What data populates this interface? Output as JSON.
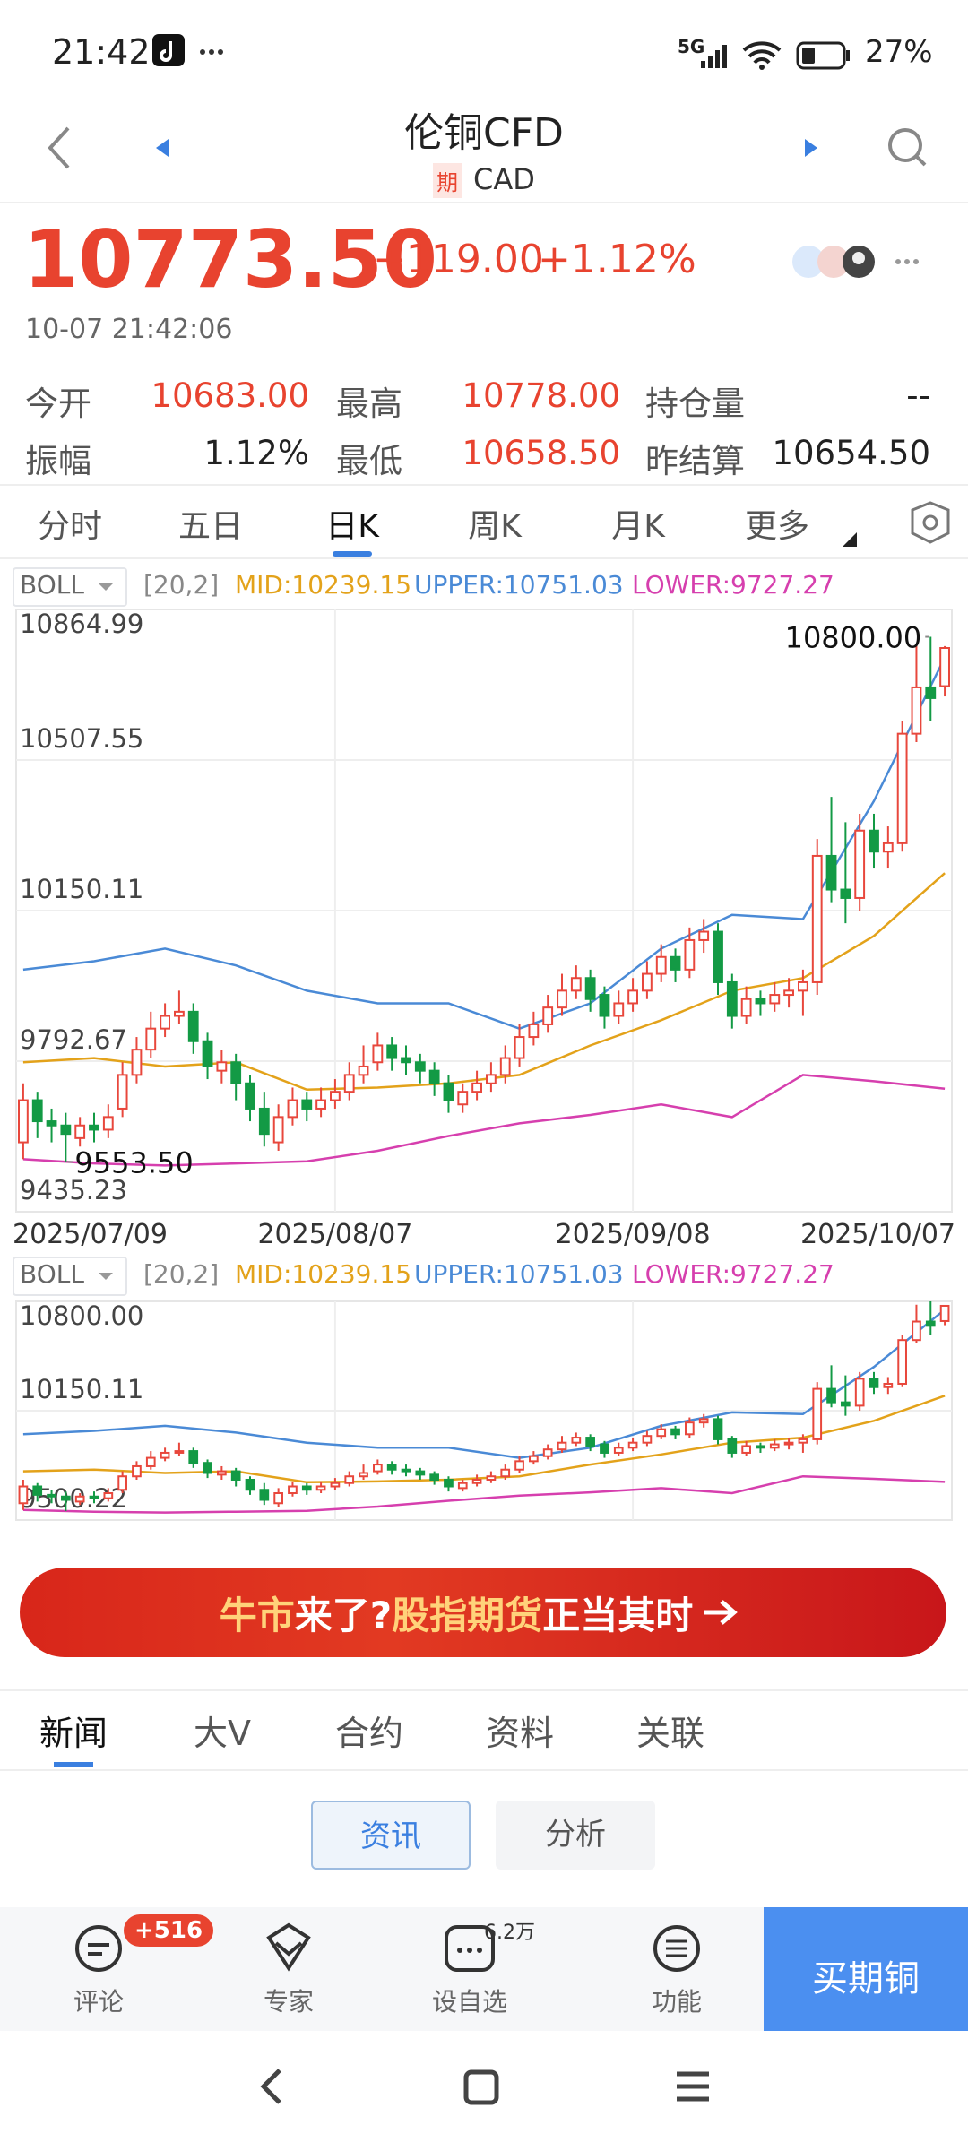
{
  "status_bar": {
    "time": "21:42",
    "network": "5G",
    "battery": "27%"
  },
  "header": {
    "title": "伦铜CFD",
    "badge": "期",
    "subtitle": "CAD"
  },
  "quote": {
    "price": "10773.50",
    "change": "+119.00",
    "change_pct": "+1.12%",
    "timestamp": "10-07 21:42:06"
  },
  "stats": [
    {
      "label": "今开",
      "value": "10683.00",
      "color": "#e8432f"
    },
    {
      "label": "最高",
      "value": "10778.00",
      "color": "#e8432f"
    },
    {
      "label": "持仓量",
      "value": "--",
      "color": "#222222"
    },
    {
      "label": "振幅",
      "value": "1.12%",
      "color": "#222222"
    },
    {
      "label": "最低",
      "value": "10658.50",
      "color": "#e8432f"
    },
    {
      "label": "昨结算",
      "value": "10654.50",
      "color": "#222222"
    }
  ],
  "period_tabs": {
    "items": [
      "分时",
      "五日",
      "日K",
      "周K",
      "月K",
      "更多"
    ],
    "active": 2
  },
  "indicator": {
    "name": "BOLL",
    "params": "[20,2]",
    "mid": "MID:10239.15",
    "upper": "UPPER:10751.03",
    "lower": "LOWER:9727.27"
  },
  "chart_data": [
    {
      "type": "candlestick",
      "categories": [
        "2025/07/09",
        null,
        null,
        null,
        null,
        null,
        null,
        null,
        null,
        null,
        null,
        null,
        null,
        null,
        null,
        null,
        null,
        null,
        null,
        null,
        null,
        null,
        "2025/08/07",
        null,
        null,
        null,
        null,
        null,
        null,
        null,
        null,
        null,
        null,
        null,
        null,
        null,
        null,
        null,
        null,
        null,
        null,
        null,
        null,
        "2025/09/08",
        null,
        null,
        null,
        null,
        null,
        null,
        null,
        null,
        null,
        null,
        null,
        null,
        null,
        null,
        null,
        null,
        null,
        null,
        null,
        null,
        null,
        "2025/10/07"
      ],
      "open": [
        9600,
        9700,
        9650,
        9640,
        9610,
        9640,
        9630,
        9680,
        9760,
        9820,
        9870,
        9900,
        9910,
        9840,
        9770,
        9790,
        9740,
        9680,
        9600,
        9660,
        9700,
        9680,
        9700,
        9720,
        9760,
        9790,
        9830,
        9800,
        9790,
        9770,
        9740,
        9690,
        9720,
        9740,
        9760,
        9800,
        9850,
        9880,
        9920,
        9960,
        9990,
        9950,
        9900,
        9930,
        9960,
        10000,
        10040,
        10010,
        10080,
        10100,
        9980,
        9900,
        9940,
        9930,
        9950,
        9960,
        9980,
        10280,
        10200,
        10180,
        10340,
        10290,
        10310,
        10570,
        10680,
        10683
      ],
      "high": [
        9740,
        9720,
        9680,
        9670,
        9660,
        9670,
        9690,
        9790,
        9850,
        9910,
        9930,
        9960,
        9930,
        9860,
        9820,
        9810,
        9760,
        9720,
        9690,
        9730,
        9720,
        9730,
        9750,
        9790,
        9830,
        9860,
        9850,
        9830,
        9810,
        9790,
        9760,
        9740,
        9770,
        9790,
        9830,
        9880,
        9910,
        9950,
        10000,
        10020,
        10010,
        9970,
        9960,
        9990,
        10030,
        10070,
        10060,
        10110,
        10130,
        10120,
        10000,
        9970,
        9960,
        9980,
        9990,
        10010,
        10320,
        10420,
        10360,
        10380,
        10380,
        10350,
        10600,
        10780,
        10800,
        10778
      ],
      "low": [
        9560,
        9610,
        9600,
        9553.5,
        9590,
        9600,
        9610,
        9660,
        9740,
        9800,
        9850,
        9880,
        9810,
        9750,
        9740,
        9700,
        9650,
        9590,
        9580,
        9640,
        9650,
        9660,
        9680,
        9700,
        9740,
        9770,
        9770,
        9760,
        9740,
        9710,
        9670,
        9670,
        9700,
        9720,
        9740,
        9780,
        9830,
        9860,
        9900,
        9940,
        9910,
        9870,
        9880,
        9910,
        9940,
        9980,
        9980,
        9990,
        10050,
        9950,
        9870,
        9880,
        9900,
        9910,
        9920,
        9900,
        9950,
        10170,
        10120,
        10150,
        10250,
        10250,
        10290,
        10550,
        10600,
        10658.5
      ],
      "close": [
        9700,
        9650,
        9640,
        9620,
        9640,
        9630,
        9660,
        9760,
        9820,
        9870,
        9900,
        9910,
        9840,
        9780,
        9790,
        9740,
        9680,
        9620,
        9660,
        9700,
        9680,
        9700,
        9720,
        9760,
        9780,
        9830,
        9800,
        9790,
        9770,
        9740,
        9700,
        9720,
        9740,
        9760,
        9800,
        9850,
        9880,
        9920,
        9960,
        9990,
        9940,
        9900,
        9930,
        9960,
        10000,
        10040,
        10010,
        10080,
        10100,
        9980,
        9900,
        9940,
        9930,
        9950,
        9960,
        9980,
        10280,
        10200,
        10180,
        10340,
        10290,
        10310,
        10570,
        10680,
        10654.5,
        10773.5
      ],
      "up_color": "#e8473c",
      "down_color": "#139a45",
      "bands": [
        {
          "color": "#4a8ad6",
          "x": [
            0,
            5,
            10,
            15,
            20,
            25,
            30,
            35,
            40,
            45,
            50,
            55,
            60,
            65
          ],
          "values": [
            10010,
            10030,
            10060,
            10020,
            9960,
            9930,
            9930,
            9870,
            9930,
            10060,
            10140,
            10130,
            10410,
            10751.03
          ]
        },
        {
          "color": "#e3a21a",
          "x": [
            0,
            5,
            10,
            15,
            20,
            25,
            30,
            35,
            40,
            45,
            50,
            55,
            60,
            65
          ],
          "values": [
            9790,
            9800,
            9780,
            9790,
            9725,
            9730,
            9740,
            9760,
            9830,
            9890,
            9960,
            9990,
            10090,
            10239.15
          ]
        },
        {
          "color": "#d63fae",
          "x": [
            0,
            5,
            10,
            15,
            20,
            25,
            30,
            35,
            40,
            45,
            50,
            55,
            60,
            65
          ],
          "values": [
            9560,
            9550,
            9545,
            9550,
            9555,
            9580,
            9615,
            9645,
            9665,
            9690,
            9660,
            9760,
            9745,
            9727.27
          ]
        }
      ],
      "ylim": [
        9435.23,
        10864.99
      ],
      "yticks": [
        10864.99,
        10507.55,
        10150.11,
        9792.67,
        9435.23
      ],
      "annotations": [
        {
          "value": 10800,
          "label": "10800.00"
        },
        {
          "value": 9553.5,
          "label": "9553.50"
        }
      ],
      "grid": true
    },
    {
      "type": "candlestick",
      "ylim": [
        9500.22,
        10800
      ],
      "yticks": [
        {
          "value": 10800,
          "label": "10800.00"
        },
        10150.11,
        9500.22
      ],
      "grid": true
    }
  ],
  "banner": {
    "parts": [
      {
        "text": "牛市",
        "color": "#ffd27a"
      },
      {
        "text": "来了?",
        "color": "#ffffff"
      },
      {
        "text": "股指期货",
        "color": "#ffd27a"
      },
      {
        "text": "正当其时",
        "color": "#ffffff"
      }
    ]
  },
  "news_tabs": {
    "items": [
      "新闻",
      "大V",
      "合约",
      "资料",
      "关联"
    ],
    "active": 0
  },
  "sub_tabs": {
    "items": [
      "资讯",
      "分析"
    ],
    "active": 0
  },
  "toolbar": {
    "items": [
      {
        "label": "评论",
        "badge": "+516"
      },
      {
        "label": "专家"
      },
      {
        "label": "设自选",
        "badge": "6.2万"
      },
      {
        "label": "功能"
      }
    ],
    "action": "买期铜"
  }
}
